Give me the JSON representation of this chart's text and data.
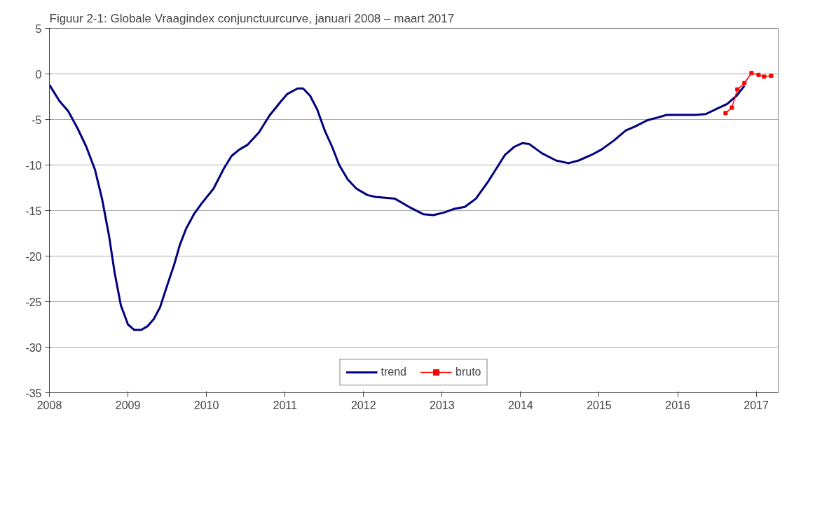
{
  "chart_data": {
    "type": "line",
    "title": "Figuur 2-1: Globale Vraagindex conjunctuurcurve, januari 2008 – maart 2017",
    "xlim": [
      2008,
      2017.28
    ],
    "ylim": [
      -35,
      5
    ],
    "xticks": [
      {
        "value": 2008,
        "label": "2008"
      },
      {
        "value": 2009,
        "label": "2009"
      },
      {
        "value": 2010,
        "label": "2010"
      },
      {
        "value": 2011,
        "label": "2011"
      },
      {
        "value": 2012,
        "label": "2012"
      },
      {
        "value": 2013,
        "label": "2013"
      },
      {
        "value": 2014,
        "label": "2014"
      },
      {
        "value": 2015,
        "label": "2015"
      },
      {
        "value": 2016,
        "label": "2016"
      },
      {
        "value": 2017,
        "label": "2017"
      }
    ],
    "yticks": [
      -35,
      -30,
      -25,
      -20,
      -15,
      -10,
      -5,
      0,
      5
    ],
    "grid": "y",
    "legend": "bottom",
    "series": [
      {
        "name": "trend",
        "color": "#000080",
        "marker": "none",
        "x": [
          2008.0,
          2008.13,
          2008.24,
          2008.36,
          2008.47,
          2008.58,
          2008.67,
          2008.76,
          2008.83,
          2008.91,
          2009.0,
          2009.08,
          2009.17,
          2009.25,
          2009.33,
          2009.41,
          2009.5,
          2009.59,
          2009.66,
          2009.74,
          2009.84,
          2009.94,
          2010.09,
          2010.22,
          2010.32,
          2010.42,
          2010.52,
          2010.67,
          2010.8,
          2010.94,
          2011.03,
          2011.16,
          2011.23,
          2011.32,
          2011.41,
          2011.51,
          2011.6,
          2011.69,
          2011.8,
          2011.91,
          2012.05,
          2012.15,
          2012.4,
          2012.58,
          2012.76,
          2012.89,
          2013.03,
          2013.16,
          2013.29,
          2013.43,
          2013.58,
          2013.69,
          2013.8,
          2013.92,
          2014.02,
          2014.11,
          2014.27,
          2014.45,
          2014.61,
          2014.74,
          2014.9,
          2015.03,
          2015.19,
          2015.34,
          2015.45,
          2015.61,
          2015.74,
          2015.86,
          2016.01,
          2016.23,
          2016.36,
          2016.48,
          2016.63,
          2016.75,
          2016.85
        ],
        "values": [
          -1.2,
          -3.0,
          -4.1,
          -6.0,
          -8.0,
          -10.5,
          -13.7,
          -17.8,
          -21.8,
          -25.4,
          -27.5,
          -28.1,
          -28.1,
          -27.7,
          -26.9,
          -25.6,
          -23.2,
          -20.9,
          -18.8,
          -17.0,
          -15.4,
          -14.2,
          -12.6,
          -10.4,
          -9.0,
          -8.3,
          -7.8,
          -6.4,
          -4.6,
          -3.1,
          -2.2,
          -1.6,
          -1.6,
          -2.4,
          -3.9,
          -6.3,
          -8.0,
          -10.0,
          -11.6,
          -12.6,
          -13.3,
          -13.5,
          -13.7,
          -14.6,
          -15.4,
          -15.5,
          -15.2,
          -14.8,
          -14.6,
          -13.7,
          -11.9,
          -10.4,
          -8.9,
          -8.0,
          -7.6,
          -7.7,
          -8.7,
          -9.5,
          -9.8,
          -9.5,
          -8.9,
          -8.3,
          -7.3,
          -6.2,
          -5.8,
          -5.1,
          -4.8,
          -4.5,
          -4.5,
          -4.5,
          -4.4,
          -3.9,
          -3.3,
          -2.4,
          -1.3
        ]
      },
      {
        "name": "bruto",
        "color": "#ff0000",
        "marker": "square",
        "x": [
          2016.61,
          2016.69,
          2016.76,
          2016.85,
          2016.94,
          2017.03,
          2017.1,
          2017.19
        ],
        "values": [
          -4.3,
          -3.7,
          -1.7,
          -1.0,
          0.1,
          -0.1,
          -0.3,
          -0.2
        ]
      }
    ]
  }
}
